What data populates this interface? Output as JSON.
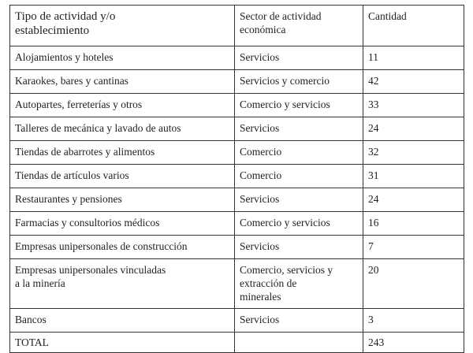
{
  "table": {
    "headers": [
      "Tipo de actividad y/o\nestablecimiento",
      "Sector de actividad\neconómica",
      "Cantidad"
    ],
    "rows": [
      [
        "Alojamientos y hoteles",
        "Servicios",
        "11"
      ],
      [
        "Karaokes, bares y cantinas",
        "Servicios y comercio",
        "42"
      ],
      [
        "Autopartes, ferreterías y otros",
        "Comercio y servicios",
        "33"
      ],
      [
        "Talleres de mecánica y lavado de autos",
        "Servicios",
        "24"
      ],
      [
        "Tiendas de abarrotes y alimentos",
        "Comercio",
        "32"
      ],
      [
        "Tiendas de artículos varios",
        "Comercio",
        "31"
      ],
      [
        "Restaurantes y pensiones",
        "Servicios",
        "24"
      ],
      [
        "Farmacias y consultorios médicos",
        "Comercio y servicios",
        "16"
      ],
      [
        "Empresas unipersonales de construcción",
        "Servicios",
        "7"
      ],
      [
        "Empresas unipersonales vinculadas\n a la minería",
        "Comercio, servicios y\nextracción de\nminerales",
        "20"
      ],
      [
        "Bancos",
        "Servicios",
        "3"
      ]
    ],
    "total": [
      "TOTAL",
      "",
      "243"
    ]
  }
}
